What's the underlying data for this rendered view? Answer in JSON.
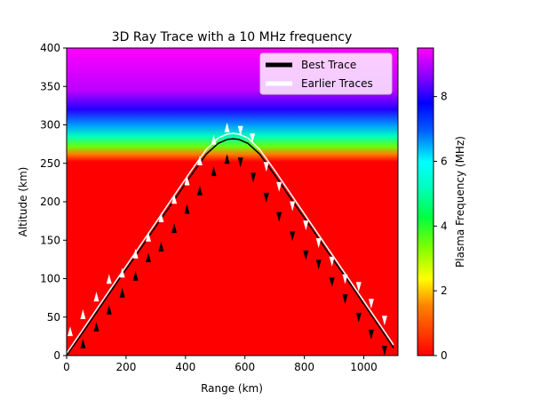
{
  "chart_data": {
    "type": "heatmap",
    "title": "3D Ray Trace with a 10 MHz frequency",
    "xlabel": "Range (km)",
    "ylabel": "Altitude (km)",
    "xlim": [
      0,
      1115
    ],
    "ylim": [
      0,
      400
    ],
    "xticks": [
      0,
      200,
      400,
      600,
      800,
      1000
    ],
    "yticks": [
      0,
      50,
      100,
      150,
      200,
      250,
      300,
      350,
      400
    ],
    "colorbar": {
      "label": "Plasma Frequency (MHz)",
      "range": [
        0,
        9.5
      ],
      "ticks": [
        0,
        2,
        4,
        6,
        8
      ]
    },
    "plasma_profile": [
      {
        "altitude": 0,
        "frequency": 0
      },
      {
        "altitude": 252,
        "frequency": 0
      },
      {
        "altitude": 262,
        "frequency": 1.5
      },
      {
        "altitude": 272,
        "frequency": 3.5
      },
      {
        "altitude": 285,
        "frequency": 5.2
      },
      {
        "altitude": 300,
        "frequency": 6.6
      },
      {
        "altitude": 320,
        "frequency": 8.0
      },
      {
        "altitude": 345,
        "frequency": 9.0
      },
      {
        "altitude": 400,
        "frequency": 9.5
      }
    ],
    "legend": {
      "position": "top-right",
      "entries": [
        {
          "label": "Best Trace",
          "color": "#000000"
        },
        {
          "label": "Earlier Traces",
          "color": "#ffffff"
        }
      ]
    },
    "series": [
      {
        "name": "Best Trace",
        "color": "#000000",
        "x": [
          0,
          60,
          120,
          180,
          240,
          300,
          360,
          420,
          470,
          510,
          540,
          560,
          580,
          610,
          650,
          700,
          760,
          820,
          880,
          940,
          1000,
          1060,
          1100
        ],
        "y": [
          0,
          33,
          67,
          101,
          134,
          168,
          201,
          235,
          262,
          276,
          281,
          282,
          281,
          276,
          262,
          235,
          201,
          168,
          134,
          101,
          67,
          33,
          10
        ]
      },
      {
        "name": "Earlier Traces",
        "color": "#ffffff",
        "x": [
          0,
          60,
          120,
          180,
          240,
          300,
          360,
          420,
          470,
          510,
          540,
          560,
          580,
          610,
          650,
          700,
          760,
          820,
          880,
          940,
          1000,
          1060,
          1100
        ],
        "y": [
          3,
          37,
          71,
          105,
          139,
          173,
          207,
          241,
          268,
          283,
          288,
          289,
          288,
          283,
          268,
          241,
          207,
          173,
          139,
          105,
          71,
          37,
          14
        ]
      }
    ],
    "markers": {
      "white": [
        {
          "x": 12,
          "y": 30
        },
        {
          "x": 55,
          "y": 52
        },
        {
          "x": 100,
          "y": 75
        },
        {
          "x": 143,
          "y": 98
        },
        {
          "x": 187,
          "y": 106
        },
        {
          "x": 232,
          "y": 131
        },
        {
          "x": 275,
          "y": 153
        },
        {
          "x": 318,
          "y": 178
        },
        {
          "x": 362,
          "y": 202
        },
        {
          "x": 405,
          "y": 226
        },
        {
          "x": 448,
          "y": 252
        },
        {
          "x": 495,
          "y": 279
        },
        {
          "x": 540,
          "y": 295
        },
        {
          "x": 585,
          "y": 294
        },
        {
          "x": 625,
          "y": 284
        },
        {
          "x": 672,
          "y": 247
        },
        {
          "x": 715,
          "y": 221
        },
        {
          "x": 760,
          "y": 196
        },
        {
          "x": 805,
          "y": 171
        },
        {
          "x": 848,
          "y": 148
        },
        {
          "x": 893,
          "y": 124
        },
        {
          "x": 937,
          "y": 101
        },
        {
          "x": 983,
          "y": 91
        },
        {
          "x": 1025,
          "y": 69
        },
        {
          "x": 1070,
          "y": 47
        }
      ],
      "black": [
        {
          "x": 55,
          "y": 14
        },
        {
          "x": 100,
          "y": 36
        },
        {
          "x": 143,
          "y": 58
        },
        {
          "x": 187,
          "y": 80
        },
        {
          "x": 232,
          "y": 102
        },
        {
          "x": 275,
          "y": 126
        },
        {
          "x": 318,
          "y": 140
        },
        {
          "x": 362,
          "y": 164
        },
        {
          "x": 405,
          "y": 189
        },
        {
          "x": 448,
          "y": 213
        },
        {
          "x": 495,
          "y": 238
        },
        {
          "x": 540,
          "y": 254
        },
        {
          "x": 585,
          "y": 253
        },
        {
          "x": 628,
          "y": 233
        },
        {
          "x": 672,
          "y": 207
        },
        {
          "x": 715,
          "y": 182
        },
        {
          "x": 760,
          "y": 157
        },
        {
          "x": 805,
          "y": 132
        },
        {
          "x": 848,
          "y": 120
        },
        {
          "x": 893,
          "y": 97
        },
        {
          "x": 937,
          "y": 75
        },
        {
          "x": 983,
          "y": 51
        },
        {
          "x": 1025,
          "y": 29
        },
        {
          "x": 1070,
          "y": 8
        }
      ]
    }
  }
}
